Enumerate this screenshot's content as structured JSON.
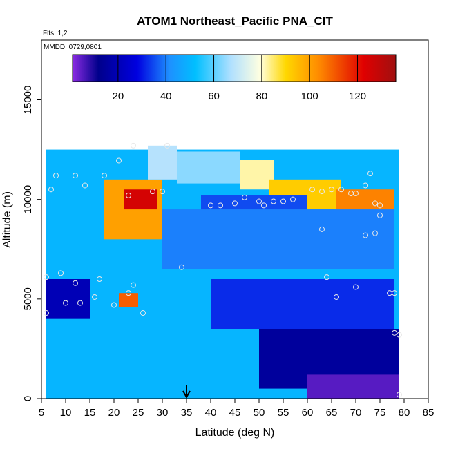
{
  "chart_data": {
    "type": "heatmap",
    "title": "ATOM1 Northeast_Pacific PNA_CIT",
    "flights_note": "Flts: 1,2",
    "dates_note": "MMDD: 0729,0801",
    "xlabel": "Latitude (deg N)",
    "ylabel": "Altitude (m)",
    "xlim": [
      5,
      85
    ],
    "ylim": [
      0,
      18000
    ],
    "xticks": [
      5,
      10,
      15,
      20,
      25,
      30,
      35,
      40,
      45,
      50,
      55,
      60,
      65,
      70,
      75,
      80,
      85
    ],
    "yticks": [
      0,
      5000,
      10000,
      15000
    ],
    "arrow_latitude": 35,
    "colorbar": {
      "range": [
        1,
        136
      ],
      "ticks": [
        20,
        40,
        60,
        80,
        100,
        120
      ],
      "colors": [
        "#8a2be2",
        "#00008b",
        "#0000e0",
        "#1e90ff",
        "#00bfff",
        "#b0e0ff",
        "#ffffe0",
        "#ffd700",
        "#ff8c00",
        "#e00000",
        "#a01010"
      ]
    },
    "grid_note": "cell values estimated from color",
    "regions": [
      {
        "lat": [
          6,
          79
        ],
        "alt": [
          0,
          12500
        ],
        "value": 50
      },
      {
        "lat": [
          18,
          30
        ],
        "alt": [
          8000,
          11000
        ],
        "value": 100
      },
      {
        "lat": [
          22,
          29
        ],
        "alt": [
          9500,
          10500
        ],
        "value": 125
      },
      {
        "lat": [
          27,
          33
        ],
        "alt": [
          11000,
          12700
        ],
        "value": 68
      },
      {
        "lat": [
          33,
          46
        ],
        "alt": [
          10800,
          12400
        ],
        "value": 64
      },
      {
        "lat": [
          46,
          53
        ],
        "alt": [
          10500,
          12000
        ],
        "value": 82
      },
      {
        "lat": [
          52,
          67
        ],
        "alt": [
          9500,
          11000
        ],
        "value": 92
      },
      {
        "lat": [
          66,
          78
        ],
        "alt": [
          8000,
          10500
        ],
        "value": 105
      },
      {
        "lat": [
          38,
          60
        ],
        "alt": [
          9400,
          10200
        ],
        "value": 35
      },
      {
        "lat": [
          30,
          78
        ],
        "alt": [
          6500,
          9500
        ],
        "value": 40
      },
      {
        "lat": [
          40,
          78
        ],
        "alt": [
          3500,
          6000
        ],
        "value": 32
      },
      {
        "lat": [
          50,
          79
        ],
        "alt": [
          500,
          3500
        ],
        "value": 15
      },
      {
        "lat": [
          60,
          79
        ],
        "alt": [
          0,
          1200
        ],
        "value": 5
      },
      {
        "lat": [
          6,
          15
        ],
        "alt": [
          4000,
          6000
        ],
        "value": 20
      },
      {
        "lat": [
          21,
          25
        ],
        "alt": [
          4600,
          5300
        ],
        "value": 110
      }
    ],
    "points": [
      [
        8,
        11200
      ],
      [
        12,
        11200
      ],
      [
        18,
        11200
      ],
      [
        21,
        11950
      ],
      [
        24,
        12700
      ],
      [
        31,
        12700
      ],
      [
        7,
        10500
      ],
      [
        14,
        10700
      ],
      [
        23,
        10200
      ],
      [
        28,
        10400
      ],
      [
        30,
        10400
      ],
      [
        40,
        9700
      ],
      [
        42,
        9700
      ],
      [
        45,
        9800
      ],
      [
        47,
        10100
      ],
      [
        50,
        9900
      ],
      [
        51,
        9700
      ],
      [
        53,
        9900
      ],
      [
        55,
        9900
      ],
      [
        57,
        10000
      ],
      [
        61,
        10500
      ],
      [
        63,
        10400
      ],
      [
        65,
        10500
      ],
      [
        67,
        10500
      ],
      [
        69,
        10300
      ],
      [
        70,
        10300
      ],
      [
        72,
        10700
      ],
      [
        73,
        11300
      ],
      [
        74,
        9800
      ],
      [
        75,
        9700
      ],
      [
        75,
        9200
      ],
      [
        63,
        8500
      ],
      [
        72,
        8200
      ],
      [
        74,
        8300
      ],
      [
        34,
        6600
      ],
      [
        64,
        6100
      ],
      [
        70,
        5600
      ],
      [
        6,
        6100
      ],
      [
        9,
        6300
      ],
      [
        12,
        5800
      ],
      [
        17,
        6000
      ],
      [
        24,
        5700
      ],
      [
        10,
        4800
      ],
      [
        13,
        4800
      ],
      [
        16,
        5100
      ],
      [
        20,
        4700
      ],
      [
        23,
        5300
      ],
      [
        26,
        4300
      ],
      [
        66,
        5100
      ],
      [
        77,
        5300
      ],
      [
        78,
        5300
      ],
      [
        6,
        4300
      ],
      [
        78,
        3300
      ],
      [
        79,
        3200
      ],
      [
        79,
        200
      ]
    ]
  }
}
